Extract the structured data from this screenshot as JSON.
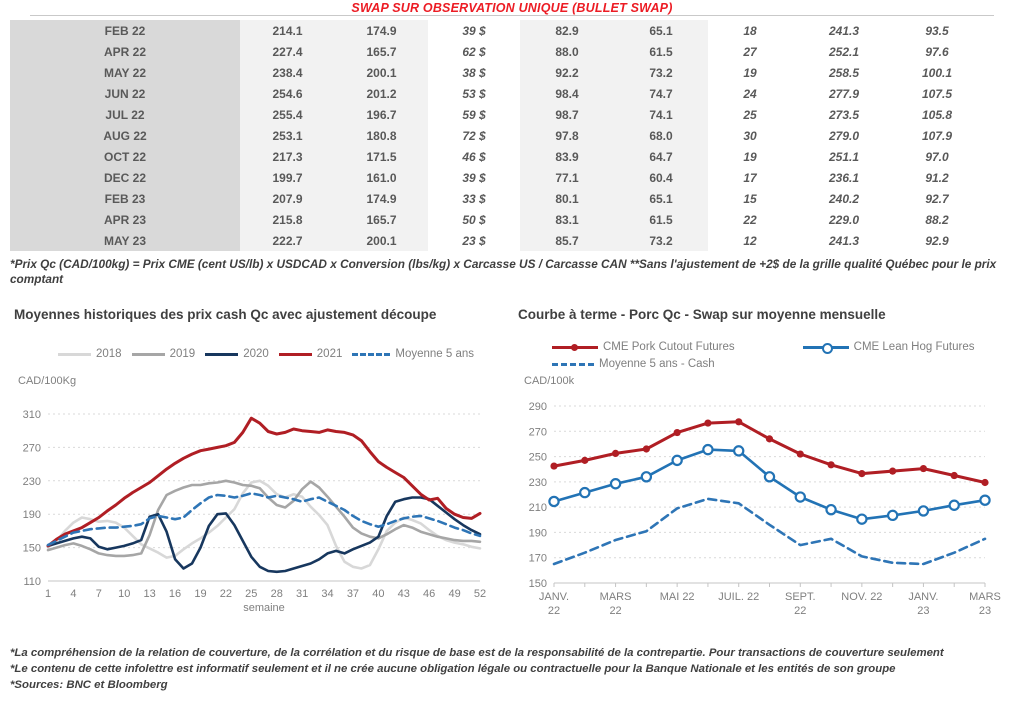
{
  "page_title": "SWAP SUR OBSERVATION UNIQUE (BULLET SWAP)",
  "colors": {
    "title_red": "#ec1c24",
    "table_green": "#00a651",
    "table_blue": "#4472c4",
    "table_text": "#595959",
    "red_line": "#b01e24",
    "navy_line": "#17375e",
    "blue_line": "#2273b5",
    "dashed_blue": "#2e75b6",
    "gray_2019": "#a6a6a6",
    "gray_2018": "#d8d8d8"
  },
  "table": {
    "rows": [
      [
        "FEB 22",
        "214.1",
        "174.9",
        "39 $",
        "82.9",
        "65.1",
        "18",
        "241.3",
        "93.5"
      ],
      [
        "APR 22",
        "227.4",
        "165.7",
        "62 $",
        "88.0",
        "61.5",
        "27",
        "252.1",
        "97.6"
      ],
      [
        "MAY 22",
        "238.4",
        "200.1",
        "38 $",
        "92.2",
        "73.2",
        "19",
        "258.5",
        "100.1"
      ],
      [
        "JUN 22",
        "254.6",
        "201.2",
        "53 $",
        "98.4",
        "74.7",
        "24",
        "277.9",
        "107.5"
      ],
      [
        "JUL 22",
        "255.4",
        "196.7",
        "59 $",
        "98.7",
        "74.1",
        "25",
        "273.5",
        "105.8"
      ],
      [
        "AUG 22",
        "253.1",
        "180.8",
        "72 $",
        "97.8",
        "68.0",
        "30",
        "279.0",
        "107.9"
      ],
      [
        "OCT 22",
        "217.3",
        "171.5",
        "46 $",
        "83.9",
        "64.7",
        "19",
        "251.1",
        "97.0"
      ],
      [
        "DEC 22",
        "199.7",
        "161.0",
        "39 $",
        "77.1",
        "60.4",
        "17",
        "236.1",
        "91.2"
      ],
      [
        "FEB 23",
        "207.9",
        "174.9",
        "33 $",
        "80.1",
        "65.1",
        "15",
        "240.2",
        "92.7"
      ],
      [
        "APR 23",
        "215.8",
        "165.7",
        "50 $",
        "83.1",
        "61.5",
        "22",
        "229.0",
        "88.2"
      ],
      [
        "MAY 23",
        "222.7",
        "200.1",
        "23 $",
        "85.7",
        "73.2",
        "12",
        "241.3",
        "92.9"
      ]
    ]
  },
  "table_note": "*Prix Qc (CAD/100kg) = Prix CME (cent US/lb) x USDCAD x Conversion (lbs/kg) x Carcasse US / Carcasse CAN **Sans l'ajustement de +2$ de la grille qualité Québec pour le prix comptant",
  "chart_data": [
    {
      "type": "line",
      "title": "Moyennes historiques des prix cash Qc avec ajustement découpe",
      "ylabel": "CAD/100Kg",
      "xlabel": "semaine",
      "ylim": [
        110,
        310
      ],
      "yticks": [
        110,
        150,
        190,
        230,
        270,
        310
      ],
      "xticks": [
        1,
        4,
        7,
        10,
        13,
        16,
        19,
        22,
        25,
        28,
        31,
        34,
        37,
        40,
        43,
        46,
        49,
        52
      ],
      "grid": "horizontal-dashed",
      "legend_position": "top",
      "series": [
        {
          "name": "2018",
          "color": "#d8d8d8",
          "values": [
            150,
            158,
            170,
            180,
            186,
            184,
            181,
            182,
            180,
            174,
            164,
            154,
            149,
            144,
            138,
            140,
            148,
            155,
            161,
            168,
            176,
            186,
            196,
            215,
            228,
            230,
            224,
            214,
            210,
            214,
            211,
            199,
            189,
            177,
            152,
            133,
            127,
            125,
            129,
            148,
            170,
            180,
            186,
            183,
            179,
            171,
            164,
            159,
            156,
            154,
            151,
            149
          ]
        },
        {
          "name": "2019",
          "color": "#a6a6a6",
          "values": [
            147,
            150,
            153,
            155,
            152,
            148,
            143,
            141,
            140,
            140,
            141,
            143,
            165,
            195,
            213,
            218,
            222,
            225,
            225,
            227,
            228,
            230,
            228,
            225,
            224,
            221,
            210,
            201,
            198,
            206,
            220,
            229,
            222,
            211,
            199,
            187,
            174,
            167,
            163,
            161,
            166,
            172,
            177,
            174,
            169,
            166,
            163,
            161,
            159,
            158,
            158,
            157
          ]
        },
        {
          "name": "2020",
          "color": "#17375e",
          "values": [
            152,
            155,
            158,
            161,
            163,
            161,
            151,
            148,
            150,
            152,
            155,
            159,
            187,
            190,
            169,
            136,
            125,
            131,
            150,
            176,
            190,
            191,
            177,
            158,
            139,
            127,
            122,
            121,
            122,
            125,
            128,
            131,
            136,
            143,
            146,
            143,
            148,
            152,
            156,
            163,
            188,
            205,
            208,
            210,
            210,
            208,
            200,
            192,
            184,
            177,
            171,
            166
          ]
        },
        {
          "name": "2021",
          "color": "#b01e24",
          "width": 3,
          "values": [
            152,
            160,
            166,
            170,
            174,
            180,
            186,
            194,
            201,
            209,
            216,
            222,
            228,
            236,
            244,
            251,
            257,
            262,
            266,
            268,
            270,
            272,
            276,
            288,
            305,
            299,
            289,
            286,
            288,
            292,
            290,
            289,
            288,
            291,
            289,
            288,
            285,
            278,
            265,
            253,
            246,
            240,
            234,
            224,
            214,
            207,
            209,
            197,
            190,
            186,
            185,
            191
          ]
        },
        {
          "name": "Moyenne 5 ans",
          "color": "#2e75b6",
          "dash": true,
          "values": [
            153,
            158,
            163,
            168,
            170,
            172,
            173,
            174,
            174,
            175,
            176,
            178,
            185,
            188,
            186,
            184,
            186,
            195,
            203,
            210,
            213,
            212,
            210,
            212,
            215,
            213,
            210,
            212,
            210,
            208,
            205,
            208,
            210,
            205,
            200,
            195,
            188,
            182,
            178,
            175,
            178,
            182,
            185,
            187,
            188,
            185,
            182,
            178,
            174,
            171,
            167,
            164
          ]
        }
      ]
    },
    {
      "type": "line",
      "title": "Courbe à terme - Porc Qc - Swap sur moyenne mensuelle",
      "ylabel": "CAD/100k",
      "ylim": [
        150,
        290
      ],
      "yticks": [
        150,
        170,
        190,
        210,
        230,
        250,
        270,
        290
      ],
      "x_labels": [
        "JANV.\n22",
        "",
        "MARS\n22",
        "",
        "MAI 22",
        "",
        "JUIL. 22",
        "",
        "SEPT.\n22",
        "",
        "NOV. 22",
        "",
        "JANV.\n23",
        "",
        "MARS\n23"
      ],
      "grid": "horizontal-dashed",
      "legend_position": "top",
      "series": [
        {
          "name": "CME Pork Cutout Futures",
          "color": "#b01e24",
          "width": 3,
          "marker": "filled-circle",
          "values": [
            242.5,
            247,
            252.5,
            256,
            269,
            276.5,
            277.5,
            264,
            252,
            243.5,
            236.5,
            238.5,
            240.5,
            235,
            229.5
          ]
        },
        {
          "name": "CME Lean Hog Futures",
          "color": "#2273b5",
          "marker": "open-circle",
          "values": [
            214.5,
            221.5,
            228.5,
            234,
            247,
            255.5,
            254.5,
            234,
            218,
            208,
            200.5,
            203.5,
            207,
            211.5,
            215.5
          ]
        },
        {
          "name": "Moyenne 5 ans - Cash",
          "color": "#2e75b6",
          "dash": true,
          "values": [
            165,
            174,
            184,
            191,
            209,
            216.5,
            213,
            196,
            180,
            185,
            171,
            166,
            165,
            174,
            185
          ]
        }
      ]
    }
  ],
  "footnotes": [
    "*La compréhension de la relation de couverture, de la corrélation et du risque de base est de la responsabilité de la contrepartie. Pour transactions de couverture seulement",
    "*Le contenu de cette infolettre est informatif seulement et il ne crée aucune obligation légale ou contractuelle pour la Banque Nationale et les entités de son groupe",
    "*Sources: BNC et Bloomberg"
  ]
}
